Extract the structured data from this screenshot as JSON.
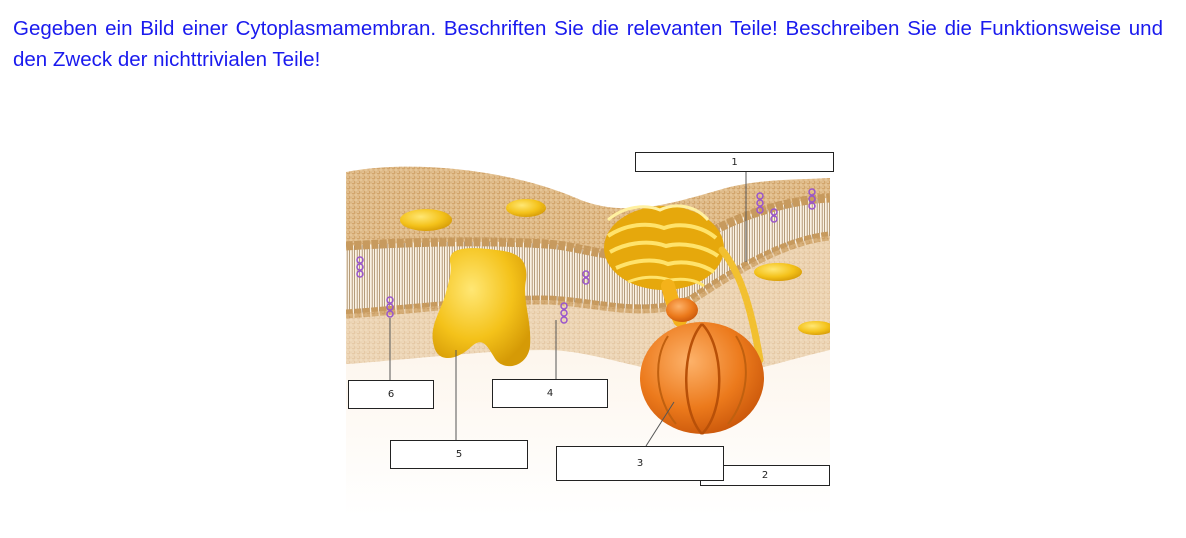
{
  "question": {
    "text": "Gegeben ein Bild einer Cytoplasmamembran. Beschriften Sie die relevanten Teile! Beschreiben Sie die Funktionsweise und den Zweck der nichttrivialen Teile!"
  },
  "figure": {
    "labels": [
      {
        "id": "1",
        "text": "1"
      },
      {
        "id": "2",
        "text": "2"
      },
      {
        "id": "3",
        "text": "3"
      },
      {
        "id": "4",
        "text": "4"
      },
      {
        "id": "5",
        "text": "5"
      },
      {
        "id": "6",
        "text": "6"
      }
    ],
    "colors": {
      "membrane_surface": "#e8c69c",
      "head_fill": "#d8b07a",
      "tail": "#a08060",
      "protein_yellow": "#f4c21a",
      "protein_orange": "#ec7a1c",
      "cholesterol": "#9955cc",
      "question_text": "#1a1aee"
    }
  }
}
